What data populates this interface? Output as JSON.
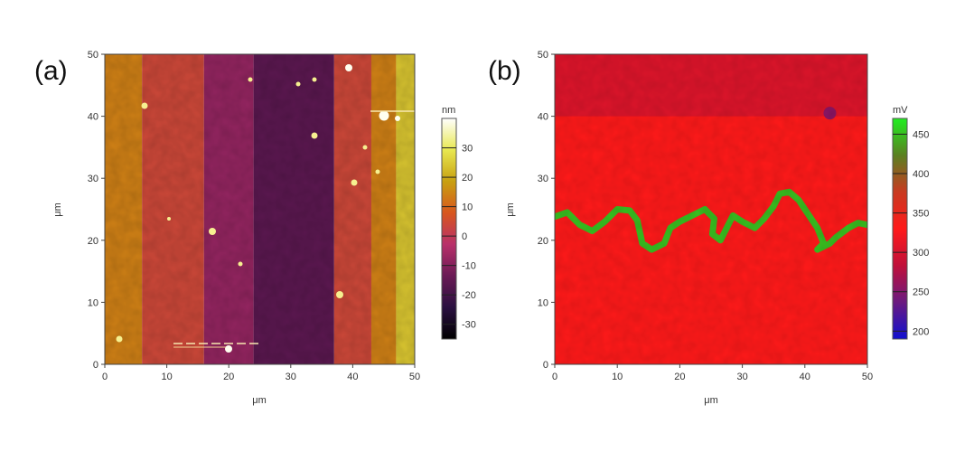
{
  "chart_data": [
    {
      "type": "heatmap",
      "panel_label": "(a)",
      "title": "",
      "xlabel": "μm",
      "ylabel": "μm",
      "xlim": [
        0,
        50
      ],
      "ylim": [
        0,
        50
      ],
      "xticks": [
        0,
        10,
        20,
        30,
        40,
        50
      ],
      "yticks": [
        0,
        10,
        20,
        30,
        40,
        50
      ],
      "colorbar": {
        "unit": "nm",
        "range": [
          -35,
          40
        ],
        "ticks": [
          -30,
          -20,
          -10,
          0,
          10,
          20,
          30
        ],
        "colors": [
          "#000000",
          "#2a1040",
          "#6a1a55",
          "#b8306a",
          "#d8561e",
          "#c8a010",
          "#e8e850",
          "#ffffff"
        ]
      },
      "regions": [
        {
          "x": [
            0,
            6
          ],
          "value": 14
        },
        {
          "x": [
            6,
            16
          ],
          "value": 4
        },
        {
          "x": [
            16,
            24
          ],
          "value": -8
        },
        {
          "x": [
            24,
            37
          ],
          "value": -16
        },
        {
          "x": [
            37,
            43
          ],
          "value": 4
        },
        {
          "x": [
            43,
            47
          ],
          "value": 14
        },
        {
          "x": [
            47,
            50
          ],
          "value": 24
        }
      ]
    },
    {
      "type": "heatmap",
      "panel_label": "(b)",
      "title": "",
      "xlabel": "μm",
      "ylabel": "μm",
      "xlim": [
        0,
        50
      ],
      "ylim": [
        0,
        50
      ],
      "xticks": [
        0,
        10,
        20,
        30,
        40,
        50
      ],
      "yticks": [
        0,
        10,
        20,
        30,
        40,
        50
      ],
      "colorbar": {
        "unit": "mV",
        "range": [
          190,
          470
        ],
        "ticks": [
          200,
          250,
          300,
          350,
          400,
          450
        ],
        "colors": [
          "#1010d0",
          "#6a1a80",
          "#c0103a",
          "#ff1a1a",
          "#c83a20",
          "#5a8020",
          "#20ee20"
        ]
      },
      "background_value": 330,
      "upper_band": {
        "y": [
          40,
          50
        ],
        "value": 305
      },
      "spot": {
        "x": 44,
        "y": 40.5,
        "value": 255
      },
      "boundary_path": [
        [
          0,
          23.8
        ],
        [
          2,
          24.5
        ],
        [
          4,
          22.5
        ],
        [
          6,
          21.5
        ],
        [
          8,
          23.0
        ],
        [
          10,
          25.0
        ],
        [
          12,
          24.8
        ],
        [
          13.2,
          23.2
        ],
        [
          14,
          19.5
        ],
        [
          15.5,
          18.5
        ],
        [
          17.5,
          19.5
        ],
        [
          18.5,
          22.0
        ],
        [
          20,
          23.0
        ],
        [
          22,
          24.0
        ],
        [
          24,
          25.0
        ],
        [
          25.5,
          23.5
        ],
        [
          25.2,
          21.0
        ],
        [
          26.5,
          20.0
        ],
        [
          27.5,
          22.0
        ],
        [
          28.5,
          24.0
        ],
        [
          30,
          23.0
        ],
        [
          32,
          22.0
        ],
        [
          33.5,
          23.5
        ],
        [
          35,
          25.5
        ],
        [
          36,
          27.5
        ],
        [
          37.5,
          27.8
        ],
        [
          39,
          26.5
        ],
        [
          40,
          25.0
        ],
        [
          42,
          22.0
        ],
        [
          43,
          19.5
        ],
        [
          42,
          18.5
        ],
        [
          44,
          19.5
        ],
        [
          45,
          20.5
        ],
        [
          47,
          22.0
        ],
        [
          48.5,
          22.8
        ],
        [
          50,
          22.5
        ]
      ],
      "boundary_value": 450
    }
  ]
}
